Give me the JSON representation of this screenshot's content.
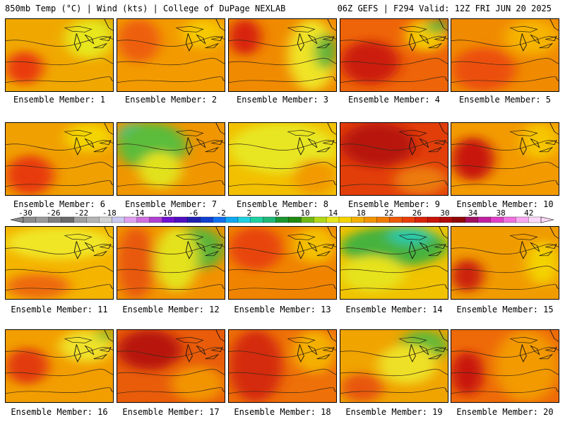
{
  "header": {
    "left": "850mb Temp (°C) | Wind (kts) | College of DuPage NEXLAB",
    "right": "06Z GEFS | F294 Valid: 12Z FRI JUN 20 2025"
  },
  "panels": [
    {
      "label": "Ensemble Member: 1",
      "base": "#f0a800",
      "blobs": [
        {
          "c": "#a6d21e",
          "l": 70,
          "t": 0,
          "r": 100,
          "b": 35
        },
        {
          "c": "#e8e61c",
          "l": 55,
          "t": 0,
          "r": 100,
          "b": 55
        },
        {
          "c": "#ea3a0c",
          "l": 0,
          "t": 45,
          "r": 35,
          "b": 90
        }
      ]
    },
    {
      "label": "Ensemble Member: 2",
      "base": "#f29a00",
      "blobs": [
        {
          "c": "#ee5e0a",
          "l": 0,
          "t": 0,
          "r": 40,
          "b": 60
        },
        {
          "c": "#f6c800",
          "l": 60,
          "t": 0,
          "r": 100,
          "b": 40
        }
      ]
    },
    {
      "label": "Ensemble Member: 3",
      "base": "#f08a00",
      "blobs": [
        {
          "c": "#f0e428",
          "l": 55,
          "t": 0,
          "r": 100,
          "b": 100
        },
        {
          "c": "#5cb43a",
          "l": 80,
          "t": 20,
          "r": 100,
          "b": 70
        },
        {
          "c": "#d8200a",
          "l": 0,
          "t": 0,
          "r": 30,
          "b": 50
        }
      ]
    },
    {
      "label": "Ensemble Member: 4",
      "base": "#ee6408",
      "blobs": [
        {
          "c": "#cc1a0a",
          "l": 0,
          "t": 30,
          "r": 55,
          "b": 90
        },
        {
          "c": "#f4c800",
          "l": 60,
          "t": 0,
          "r": 100,
          "b": 45
        },
        {
          "c": "#66b234",
          "l": 80,
          "t": 0,
          "r": 100,
          "b": 20
        }
      ]
    },
    {
      "label": "Ensemble Member: 5",
      "base": "#f08a00",
      "blobs": [
        {
          "c": "#ec5008",
          "l": 0,
          "t": 40,
          "r": 60,
          "b": 100
        },
        {
          "c": "#f6b400",
          "l": 50,
          "t": 0,
          "r": 100,
          "b": 50
        }
      ]
    },
    {
      "label": "Ensemble Member: 6",
      "base": "#f0a000",
      "blobs": [
        {
          "c": "#e83a0a",
          "l": 0,
          "t": 45,
          "r": 45,
          "b": 100
        },
        {
          "c": "#f4d400",
          "l": 55,
          "t": 0,
          "r": 100,
          "b": 40
        }
      ]
    },
    {
      "label": "Ensemble Member: 7",
      "base": "#f09600",
      "blobs": [
        {
          "c": "#3ec8a0",
          "l": 0,
          "t": 0,
          "r": 35,
          "b": 40
        },
        {
          "c": "#5cbc3a",
          "l": 0,
          "t": 0,
          "r": 65,
          "b": 65
        },
        {
          "c": "#e2e21c",
          "l": 20,
          "t": 40,
          "r": 60,
          "b": 90
        }
      ]
    },
    {
      "label": "Ensemble Member: 8",
      "base": "#f2c000",
      "blobs": [
        {
          "c": "#e8e624",
          "l": 0,
          "t": 0,
          "r": 100,
          "b": 70
        },
        {
          "c": "#f29a00",
          "l": 60,
          "t": 50,
          "r": 100,
          "b": 100
        }
      ]
    },
    {
      "label": "Ensemble Member: 9",
      "base": "#e23e0a",
      "blobs": [
        {
          "c": "#b8140a",
          "l": 0,
          "t": 0,
          "r": 70,
          "b": 60
        },
        {
          "c": "#ec7a08",
          "l": 50,
          "t": 60,
          "r": 100,
          "b": 100
        }
      ]
    },
    {
      "label": "Ensemble Member: 10",
      "base": "#f29a00",
      "blobs": [
        {
          "c": "#c8160a",
          "l": 0,
          "t": 20,
          "r": 40,
          "b": 80
        },
        {
          "c": "#f6c600",
          "l": 65,
          "t": 0,
          "r": 100,
          "b": 50
        }
      ]
    },
    {
      "label": "Ensemble Member: 11",
      "base": "#f4b400",
      "blobs": [
        {
          "c": "#f0e628",
          "l": 0,
          "t": 0,
          "r": 100,
          "b": 45
        },
        {
          "c": "#ee6a08",
          "l": 0,
          "t": 65,
          "r": 60,
          "b": 100
        }
      ]
    },
    {
      "label": "Ensemble Member: 12",
      "base": "#f29200",
      "blobs": [
        {
          "c": "#5cb438",
          "l": 45,
          "t": 0,
          "r": 100,
          "b": 60
        },
        {
          "c": "#e4e21c",
          "l": 35,
          "t": 0,
          "r": 75,
          "b": 90
        },
        {
          "c": "#e8580a",
          "l": 0,
          "t": 0,
          "r": 35,
          "b": 100
        }
      ]
    },
    {
      "label": "Ensemble Member: 13",
      "base": "#f08400",
      "blobs": [
        {
          "c": "#e8440a",
          "l": 0,
          "t": 0,
          "r": 50,
          "b": 60
        },
        {
          "c": "#f4c000",
          "l": 60,
          "t": 0,
          "r": 100,
          "b": 50
        }
      ]
    },
    {
      "label": "Ensemble Member: 14",
      "base": "#f0c200",
      "blobs": [
        {
          "c": "#46b23c",
          "l": 0,
          "t": 0,
          "r": 100,
          "b": 55
        },
        {
          "c": "#2cc8a8",
          "l": 45,
          "t": 0,
          "r": 85,
          "b": 25
        },
        {
          "c": "#e6e21e",
          "l": 0,
          "t": 40,
          "r": 60,
          "b": 90
        }
      ]
    },
    {
      "label": "Ensemble Member: 15",
      "base": "#f09c00",
      "blobs": [
        {
          "c": "#cc200a",
          "l": 0,
          "t": 45,
          "r": 30,
          "b": 90
        },
        {
          "c": "#f4d200",
          "l": 70,
          "t": 20,
          "r": 100,
          "b": 80
        }
      ]
    },
    {
      "label": "Ensemble Member: 16",
      "base": "#f29e00",
      "blobs": [
        {
          "c": "#e23a0a",
          "l": 0,
          "t": 25,
          "r": 40,
          "b": 75
        },
        {
          "c": "#f0e22a",
          "l": 50,
          "t": 0,
          "r": 100,
          "b": 45
        },
        {
          "c": "#78c030",
          "l": 85,
          "t": 0,
          "r": 100,
          "b": 15
        }
      ]
    },
    {
      "label": "Ensemble Member: 17",
      "base": "#e85c0a",
      "blobs": [
        {
          "c": "#b8140a",
          "l": 0,
          "t": 0,
          "r": 60,
          "b": 55
        },
        {
          "c": "#f29400",
          "l": 50,
          "t": 50,
          "r": 100,
          "b": 100
        }
      ]
    },
    {
      "label": "Ensemble Member: 18",
      "base": "#ee7008",
      "blobs": [
        {
          "c": "#d42a0a",
          "l": 0,
          "t": 0,
          "r": 50,
          "b": 100
        },
        {
          "c": "#f4b000",
          "l": 60,
          "t": 0,
          "r": 100,
          "b": 60
        }
      ]
    },
    {
      "label": "Ensemble Member: 19",
      "base": "#f0a400",
      "blobs": [
        {
          "c": "#66b834",
          "l": 55,
          "t": 0,
          "r": 100,
          "b": 45
        },
        {
          "c": "#eee026",
          "l": 35,
          "t": 20,
          "r": 90,
          "b": 75
        },
        {
          "c": "#e8560a",
          "l": 0,
          "t": 60,
          "r": 40,
          "b": 100
        }
      ]
    },
    {
      "label": "Ensemble Member: 20",
      "base": "#ee6a08",
      "blobs": [
        {
          "c": "#c8180a",
          "l": 0,
          "t": 30,
          "r": 30,
          "b": 90
        },
        {
          "c": "#f29a00",
          "l": 40,
          "t": 0,
          "r": 100,
          "b": 100
        }
      ]
    }
  ],
  "colorbar": {
    "tick_labels": [
      "-30",
      "-26",
      "-22",
      "-18",
      "-14",
      "-10",
      "-6",
      "-2",
      "2",
      "6",
      "10",
      "14",
      "18",
      "22",
      "26",
      "30",
      "34",
      "38",
      "42"
    ],
    "colors": [
      "#8c8c8c",
      "#9a9a9a",
      "#7f7f7f",
      "#6b6b6b",
      "#a0a0a0",
      "#b4b4b4",
      "#d2d2d2",
      "#c8c8f0",
      "#e0a0f0",
      "#d070e0",
      "#b040d0",
      "#7010d0",
      "#5010c0",
      "#2020b0",
      "#1040d0",
      "#1070f0",
      "#10a8f0",
      "#20d0e0",
      "#20d0a0",
      "#20b878",
      "#1c9630",
      "#208a10",
      "#70b818",
      "#b0d818",
      "#e6e61c",
      "#f4d400",
      "#f4b000",
      "#f29400",
      "#f07a00",
      "#ec5a08",
      "#e83e0a",
      "#d8240a",
      "#c8140a",
      "#b00c0a",
      "#900808",
      "#a01060",
      "#c020a0",
      "#e040c8",
      "#f070e0",
      "#f8a8f0",
      "#fcd8f8"
    ]
  }
}
